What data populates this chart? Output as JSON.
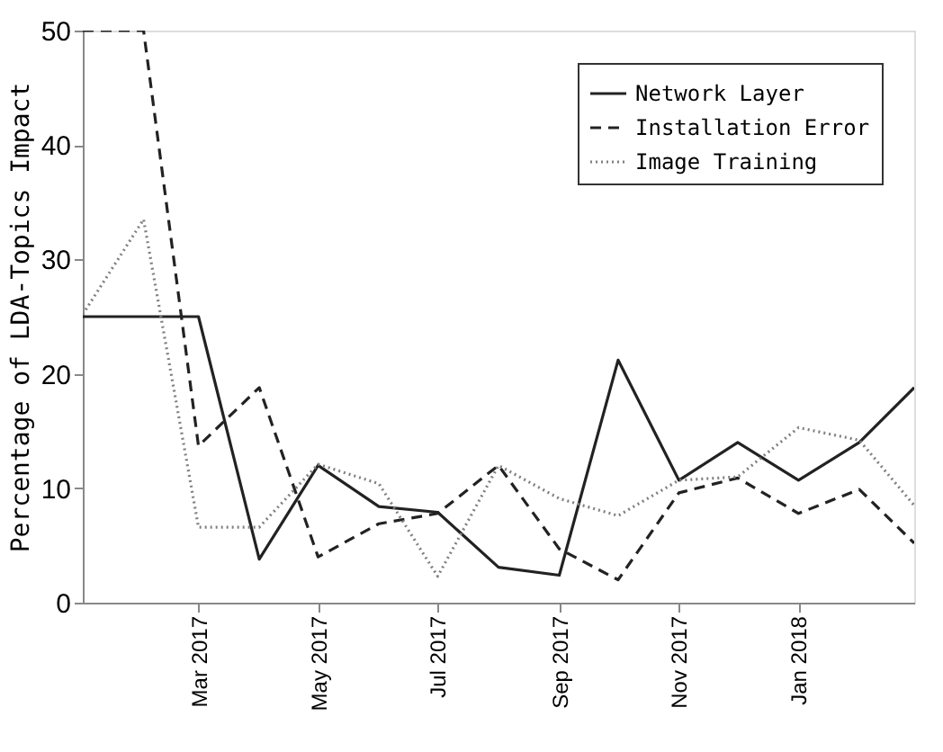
{
  "chart_data": {
    "type": "line",
    "ylabel": "Percentage of LDA-Topics Impact",
    "x": [
      "2017-01-01",
      "2017-02-01",
      "2017-03-01",
      "2017-04-01",
      "2017-05-01",
      "2017-06-01",
      "2017-07-01",
      "2017-08-01",
      "2017-09-01",
      "2017-10-01",
      "2017-11-01",
      "2017-12-01",
      "2018-01-01",
      "2018-02-01",
      "2018-03-01"
    ],
    "xlim": [
      "2017-01-01",
      "2018-03-01"
    ],
    "xticks": [
      {
        "value": "2017-03-01",
        "label": "Mar 2017"
      },
      {
        "value": "2017-05-01",
        "label": "May 2017"
      },
      {
        "value": "2017-07-01",
        "label": "Jul 2017"
      },
      {
        "value": "2017-09-01",
        "label": "Sep 2017"
      },
      {
        "value": "2017-11-01",
        "label": "Nov 2017"
      },
      {
        "value": "2018-01-01",
        "label": "Jan 2018"
      }
    ],
    "ylim": [
      0,
      50
    ],
    "yticks": [
      0,
      10,
      20,
      30,
      40,
      50
    ],
    "grid": false,
    "legend": "top right",
    "series": [
      {
        "name": "Network Layer",
        "color": "#222222",
        "line_style": "solid",
        "values": [
          25,
          25,
          25,
          3.8,
          12,
          8.4,
          7.9,
          3.1,
          2.4,
          21.2,
          10.7,
          14,
          10.7,
          14,
          18.8
        ]
      },
      {
        "name": "Installation Error",
        "color": "#222222",
        "line_style": "dashed",
        "values": [
          50,
          50,
          13.7,
          18.8,
          4,
          6.9,
          7.8,
          12,
          4.7,
          2,
          9.6,
          10.9,
          7.8,
          9.9,
          5.2
        ]
      },
      {
        "name": "Image Training",
        "color": "#808080",
        "line_style": "dotted",
        "values": [
          25.2,
          33.5,
          6.6,
          6.6,
          12.1,
          10.4,
          2.3,
          12,
          9.1,
          7.6,
          10.7,
          11,
          15.3,
          14.2,
          8.5
        ]
      }
    ]
  }
}
